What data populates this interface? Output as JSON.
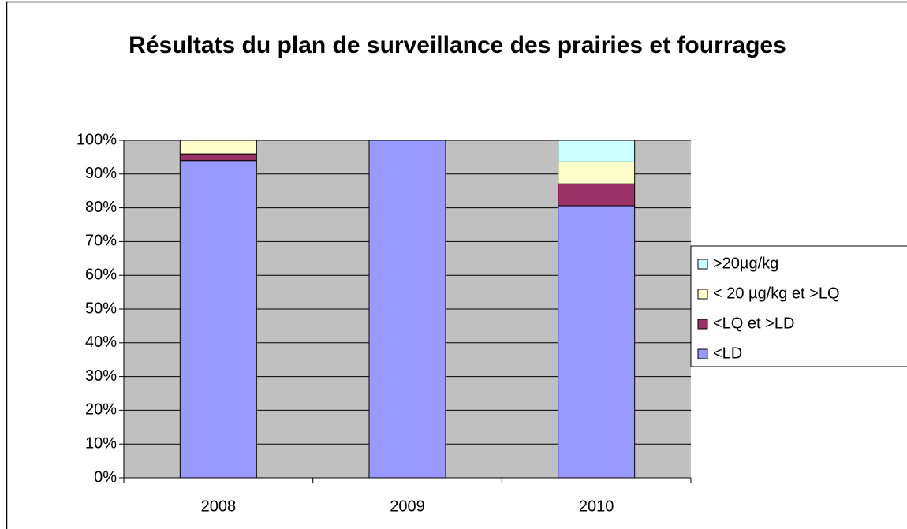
{
  "chart_data": {
    "type": "stacked_bar",
    "title": "Résultats du plan de surveillance des prairies et fourrages",
    "categories": [
      "2008",
      "2009",
      "2010"
    ],
    "series": [
      {
        "name": "<LD",
        "color": "#9999ff",
        "values": [
          94,
          100,
          80.6
        ]
      },
      {
        "name": "<LQ et >LD",
        "color": "#993366",
        "values": [
          2,
          0,
          6.5
        ]
      },
      {
        "name": "< 20 µg/kg et >LQ",
        "color": "#ffffcc",
        "values": [
          4,
          0,
          6.5
        ]
      },
      {
        "name": ">20µg/kg",
        "color": "#ccffff",
        "values": [
          0,
          0,
          6.4
        ]
      }
    ],
    "ylim": [
      0,
      100
    ],
    "yticks": [
      {
        "value": 0,
        "label": "0%"
      },
      {
        "value": 10,
        "label": "10%"
      },
      {
        "value": 20,
        "label": "20%"
      },
      {
        "value": 30,
        "label": "30%"
      },
      {
        "value": 40,
        "label": "40%"
      },
      {
        "value": 50,
        "label": "50%"
      },
      {
        "value": 60,
        "label": "60%"
      },
      {
        "value": 70,
        "label": "70%"
      },
      {
        "value": 80,
        "label": "80%"
      },
      {
        "value": 90,
        "label": "90%"
      },
      {
        "value": 100,
        "label": "100%"
      }
    ],
    "grid": true,
    "legend": "right"
  }
}
